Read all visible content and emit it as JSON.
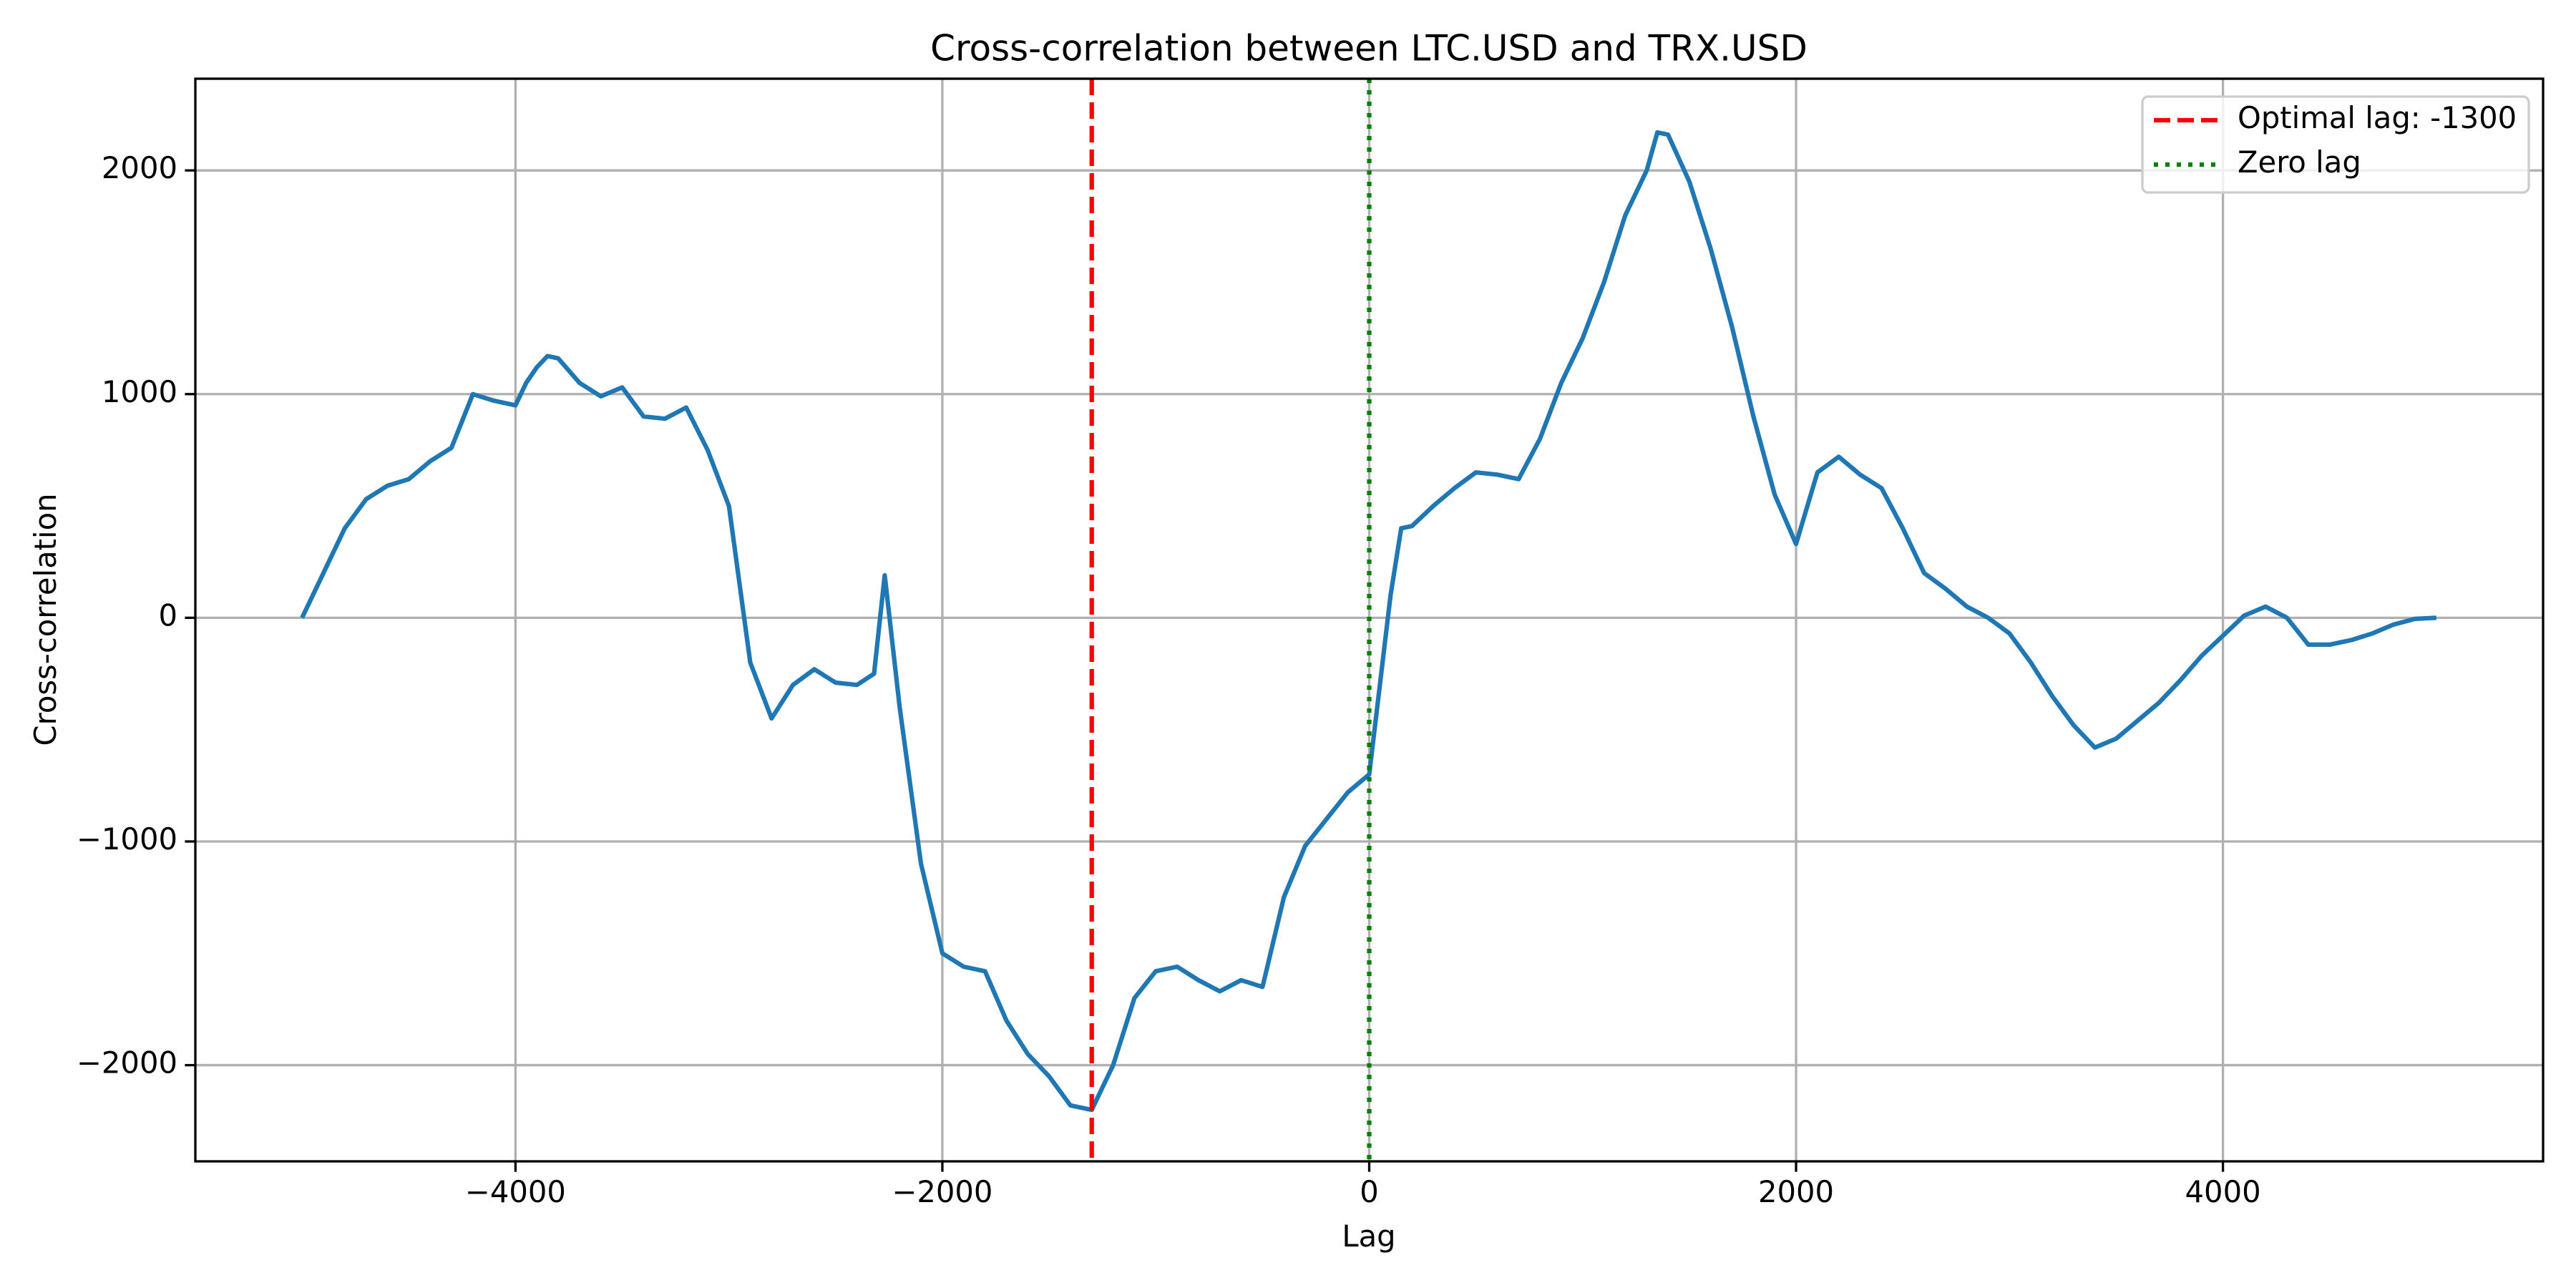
{
  "chart_data": {
    "type": "line",
    "title": "Cross-correlation between LTC.USD and TRX.USD",
    "x_label": "Lag",
    "y_label": "Cross-correlation",
    "x": [
      -5000,
      -4900,
      -4800,
      -4700,
      -4600,
      -4500,
      -4400,
      -4300,
      -4200,
      -4100,
      -4000,
      -3950,
      -3900,
      -3850,
      -3800,
      -3700,
      -3600,
      -3500,
      -3400,
      -3300,
      -3200,
      -3100,
      -3000,
      -2900,
      -2800,
      -2700,
      -2600,
      -2500,
      -2400,
      -2320,
      -2270,
      -2200,
      -2100,
      -2000,
      -1900,
      -1800,
      -1700,
      -1600,
      -1500,
      -1400,
      -1300,
      -1200,
      -1100,
      -1000,
      -900,
      -800,
      -700,
      -600,
      -500,
      -400,
      -300,
      -200,
      -100,
      0,
      50,
      100,
      150,
      200,
      300,
      400,
      500,
      600,
      700,
      800,
      900,
      1000,
      1100,
      1200,
      1300,
      1350,
      1400,
      1500,
      1600,
      1700,
      1800,
      1900,
      2000,
      2100,
      2200,
      2300,
      2400,
      2500,
      2600,
      2700,
      2800,
      2900,
      3000,
      3100,
      3200,
      3300,
      3400,
      3500,
      3600,
      3700,
      3800,
      3900,
      4000,
      4100,
      4200,
      4300,
      4400,
      4500,
      4600,
      4700,
      4800,
      4900,
      5000
    ],
    "values": [
      0,
      200,
      400,
      530,
      590,
      620,
      700,
      760,
      1000,
      970,
      950,
      1050,
      1120,
      1170,
      1160,
      1050,
      990,
      1030,
      900,
      890,
      940,
      750,
      500,
      -200,
      -450,
      -300,
      -230,
      -290,
      -300,
      -250,
      190,
      -400,
      -1100,
      -1500,
      -1560,
      -1580,
      -1800,
      -1950,
      -2050,
      -2180,
      -2200,
      -2000,
      -1700,
      -1580,
      -1560,
      -1620,
      -1670,
      -1620,
      -1650,
      -1250,
      -1020,
      -900,
      -780,
      -700,
      -300,
      100,
      400,
      410,
      500,
      580,
      650,
      640,
      620,
      800,
      1050,
      1250,
      1500,
      1800,
      2000,
      2170,
      2160,
      1950,
      1650,
      1300,
      900,
      550,
      330,
      650,
      720,
      640,
      580,
      400,
      200,
      130,
      50,
      0,
      -70,
      -200,
      -350,
      -480,
      -580,
      -540,
      -460,
      -380,
      -280,
      -170,
      -80,
      10,
      50,
      0,
      -120,
      -120,
      -100,
      -70,
      -30,
      -5,
      0
    ],
    "color": "#1f77b4",
    "vlines": [
      {
        "name": "Optimal lag: -1300",
        "x": -1300,
        "color": "#ff0000",
        "style": "dashed"
      },
      {
        "name": "Zero lag",
        "x": 0,
        "color": "#008000",
        "style": "dotted"
      }
    ],
    "xlim": [
      -5500,
      5500
    ],
    "ylim": [
      -2430,
      2410
    ],
    "xticks": [
      {
        "value": -4000,
        "label": "−4000"
      },
      {
        "value": -2000,
        "label": "−2000"
      },
      0,
      2000,
      4000
    ],
    "yticks": [
      {
        "value": -2000,
        "label": "−2000"
      },
      {
        "value": -1000,
        "label": "−1000"
      },
      0,
      1000,
      2000
    ],
    "grid": true,
    "legend": "upper right"
  }
}
